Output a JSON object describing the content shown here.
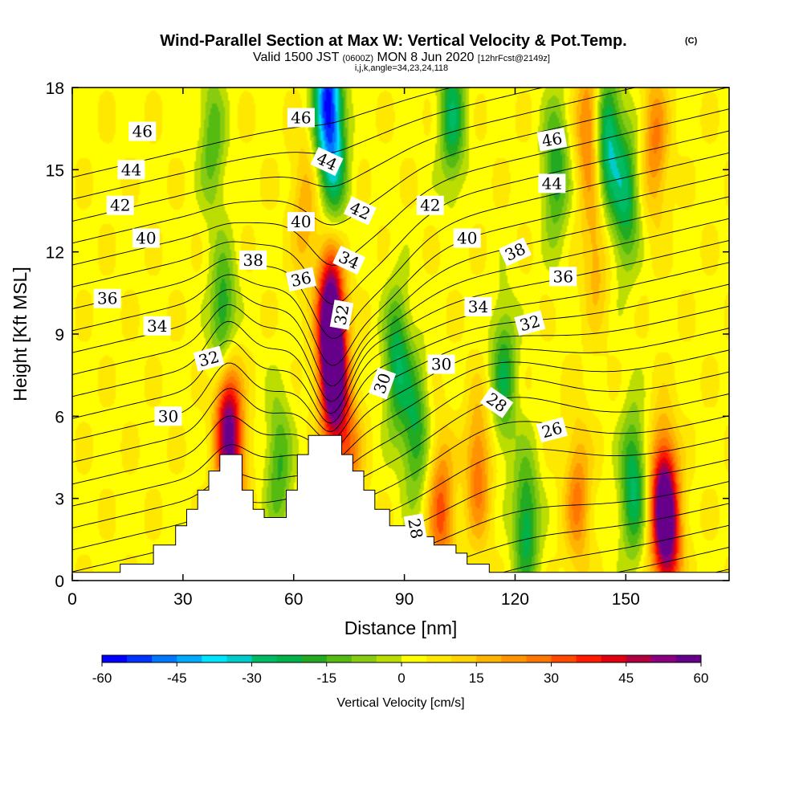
{
  "chart_data": {
    "type": "heatmap",
    "title": "Wind-Parallel Section at Max W: Vertical Velocity & Pot.Temp.",
    "title_mark": "(C)",
    "subtitle_parts": [
      "Valid 1500 JST",
      "(0600Z)",
      "MON 8 Jun 2020",
      "[12hrFcst@2149z]"
    ],
    "subtitle2": "i,j,k,angle=34,23,24,118",
    "xlabel": "Distance [nm]",
    "ylabel": "Height [Kft MSL]",
    "xlim": [
      0,
      178
    ],
    "ylim": [
      0,
      18
    ],
    "x_ticks": [
      0,
      30,
      60,
      90,
      120,
      150
    ],
    "y_ticks": [
      0,
      3,
      6,
      9,
      12,
      15,
      18
    ],
    "grid": false,
    "colorbar": {
      "label": "Vertical Velocity [cm/s]",
      "min": -60,
      "max": 60,
      "tick_values": [
        -60,
        -45,
        -30,
        -15,
        0,
        15,
        30,
        45,
        60
      ],
      "tick_labels": [
        "-60",
        "-45",
        "-30",
        "-15",
        "0",
        "15",
        "30",
        "45",
        "60"
      ],
      "colors": [
        "#0000ff",
        "#0033ff",
        "#0077ff",
        "#00aaff",
        "#00e5ff",
        "#00cccc",
        "#00bb66",
        "#00b24a",
        "#22aa22",
        "#55bb11",
        "#88cc11",
        "#bbdd00",
        "#ffff00",
        "#ffe800",
        "#ffd200",
        "#ffb400",
        "#ff9400",
        "#ff7700",
        "#ff4a00",
        "#ff1a00",
        "#e00010",
        "#b00040",
        "#8a0080",
        "#66008a"
      ]
    },
    "terrain_kft": [
      [
        0,
        0.3
      ],
      [
        13,
        0.3
      ],
      [
        13,
        0.6
      ],
      [
        22,
        0.6
      ],
      [
        22,
        1.3
      ],
      [
        28,
        1.3
      ],
      [
        28,
        2.0
      ],
      [
        31,
        2.0
      ],
      [
        31,
        2.6
      ],
      [
        34,
        2.6
      ],
      [
        34,
        3.3
      ],
      [
        37,
        3.3
      ],
      [
        37,
        4.0
      ],
      [
        40,
        4.0
      ],
      [
        40,
        4.6
      ],
      [
        46,
        4.6
      ],
      [
        46,
        3.3
      ],
      [
        49,
        3.3
      ],
      [
        49,
        2.6
      ],
      [
        52,
        2.6
      ],
      [
        52,
        2.3
      ],
      [
        58,
        2.3
      ],
      [
        58,
        3.3
      ],
      [
        61,
        3.3
      ],
      [
        61,
        4.6
      ],
      [
        64,
        4.6
      ],
      [
        64,
        5.3
      ],
      [
        73,
        5.3
      ],
      [
        73,
        4.6
      ],
      [
        76,
        4.6
      ],
      [
        76,
        4.0
      ],
      [
        79,
        4.0
      ],
      [
        79,
        3.3
      ],
      [
        82,
        3.3
      ],
      [
        82,
        2.6
      ],
      [
        86,
        2.6
      ],
      [
        86,
        2.0
      ],
      [
        91,
        2.0
      ],
      [
        91,
        1.6
      ],
      [
        98,
        1.6
      ],
      [
        98,
        1.3
      ],
      [
        104,
        1.3
      ],
      [
        104,
        1.0
      ],
      [
        107,
        1.0
      ],
      [
        107,
        0.6
      ],
      [
        113,
        0.6
      ],
      [
        113,
        0.3
      ],
      [
        178,
        0.3
      ]
    ],
    "w_cores": [
      {
        "x": 42,
        "y": 6.0,
        "w": 48
      },
      {
        "x": 44,
        "y": 3.8,
        "w": 22
      },
      {
        "x": 70,
        "y": 9.5,
        "w": 62
      },
      {
        "x": 71,
        "y": 7.2,
        "w": 50
      },
      {
        "x": 75,
        "y": 4.5,
        "w": 22
      },
      {
        "x": 63,
        "y": 13.5,
        "w": 15
      },
      {
        "x": 100,
        "y": 2.5,
        "w": 28
      },
      {
        "x": 110,
        "y": 4.0,
        "w": 24
      },
      {
        "x": 137,
        "y": 3.0,
        "w": 22
      },
      {
        "x": 160,
        "y": 2.8,
        "w": 50
      },
      {
        "x": 162,
        "y": 1.5,
        "w": 30
      },
      {
        "x": 140,
        "y": 16.5,
        "w": 25
      },
      {
        "x": 158,
        "y": 16.0,
        "w": 22
      },
      {
        "x": 142,
        "y": 12.0,
        "w": 15
      },
      {
        "x": 41,
        "y": 9.3,
        "w": -30
      },
      {
        "x": 56,
        "y": 4.2,
        "w": -20
      },
      {
        "x": 69,
        "y": 17.8,
        "w": -50
      },
      {
        "x": 71,
        "y": 15.5,
        "w": -30
      },
      {
        "x": 88,
        "y": 8.0,
        "w": -28
      },
      {
        "x": 93,
        "y": 5.5,
        "w": -24
      },
      {
        "x": 103,
        "y": 17.0,
        "w": -28
      },
      {
        "x": 117,
        "y": 7.5,
        "w": -24
      },
      {
        "x": 123,
        "y": 2.0,
        "w": -28
      },
      {
        "x": 131,
        "y": 15.0,
        "w": -24
      },
      {
        "x": 145,
        "y": 16.0,
        "w": -35
      },
      {
        "x": 152,
        "y": 3.5,
        "w": -30
      },
      {
        "x": 150,
        "y": 14.0,
        "w": -28
      },
      {
        "x": 38,
        "y": 16.0,
        "w": -18
      }
    ],
    "isentropes_C": {
      "min": 22,
      "max": 47,
      "step": 1
    },
    "contour_labels": [
      {
        "text": "46",
        "x": 19,
        "y": 16.4,
        "angle": 0
      },
      {
        "text": "44",
        "x": 16,
        "y": 15.0,
        "angle": 0
      },
      {
        "text": "42",
        "x": 13,
        "y": 13.7,
        "angle": 0
      },
      {
        "text": "40",
        "x": 20,
        "y": 12.5,
        "angle": 0
      },
      {
        "text": "36",
        "x": 9.5,
        "y": 10.3,
        "angle": 0
      },
      {
        "text": "34",
        "x": 23,
        "y": 9.3,
        "angle": 0
      },
      {
        "text": "32",
        "x": 37,
        "y": 8.1,
        "angle": -15
      },
      {
        "text": "30",
        "x": 26,
        "y": 6.0,
        "angle": 0
      },
      {
        "text": "38",
        "x": 49,
        "y": 11.7,
        "angle": 0
      },
      {
        "text": "36",
        "x": 62,
        "y": 11.0,
        "angle": -12
      },
      {
        "text": "40",
        "x": 62,
        "y": 13.1,
        "angle": 0
      },
      {
        "text": "46",
        "x": 62,
        "y": 16.9,
        "angle": 0
      },
      {
        "text": "44",
        "x": 69,
        "y": 15.3,
        "angle": 25
      },
      {
        "text": "42",
        "x": 78,
        "y": 13.5,
        "angle": 25
      },
      {
        "text": "34",
        "x": 75,
        "y": 11.7,
        "angle": 25
      },
      {
        "text": "32",
        "x": 73,
        "y": 9.7,
        "angle": -80
      },
      {
        "text": "30",
        "x": 84,
        "y": 7.2,
        "angle": -70
      },
      {
        "text": "42",
        "x": 97,
        "y": 13.7,
        "angle": 0
      },
      {
        "text": "40",
        "x": 107,
        "y": 12.5,
        "angle": 0
      },
      {
        "text": "38",
        "x": 120,
        "y": 12.0,
        "angle": -25
      },
      {
        "text": "36",
        "x": 133,
        "y": 11.1,
        "angle": 0
      },
      {
        "text": "34",
        "x": 110,
        "y": 10.0,
        "angle": 0
      },
      {
        "text": "32",
        "x": 124,
        "y": 9.4,
        "angle": -15
      },
      {
        "text": "30",
        "x": 100,
        "y": 7.9,
        "angle": 0
      },
      {
        "text": "28",
        "x": 115,
        "y": 6.5,
        "angle": 35
      },
      {
        "text": "26",
        "x": 130,
        "y": 5.5,
        "angle": -15
      },
      {
        "text": "46",
        "x": 130,
        "y": 16.1,
        "angle": -10
      },
      {
        "text": "44",
        "x": 130,
        "y": 14.5,
        "angle": 0
      },
      {
        "text": "28",
        "x": 93,
        "y": 1.9,
        "angle": 80
      }
    ]
  }
}
